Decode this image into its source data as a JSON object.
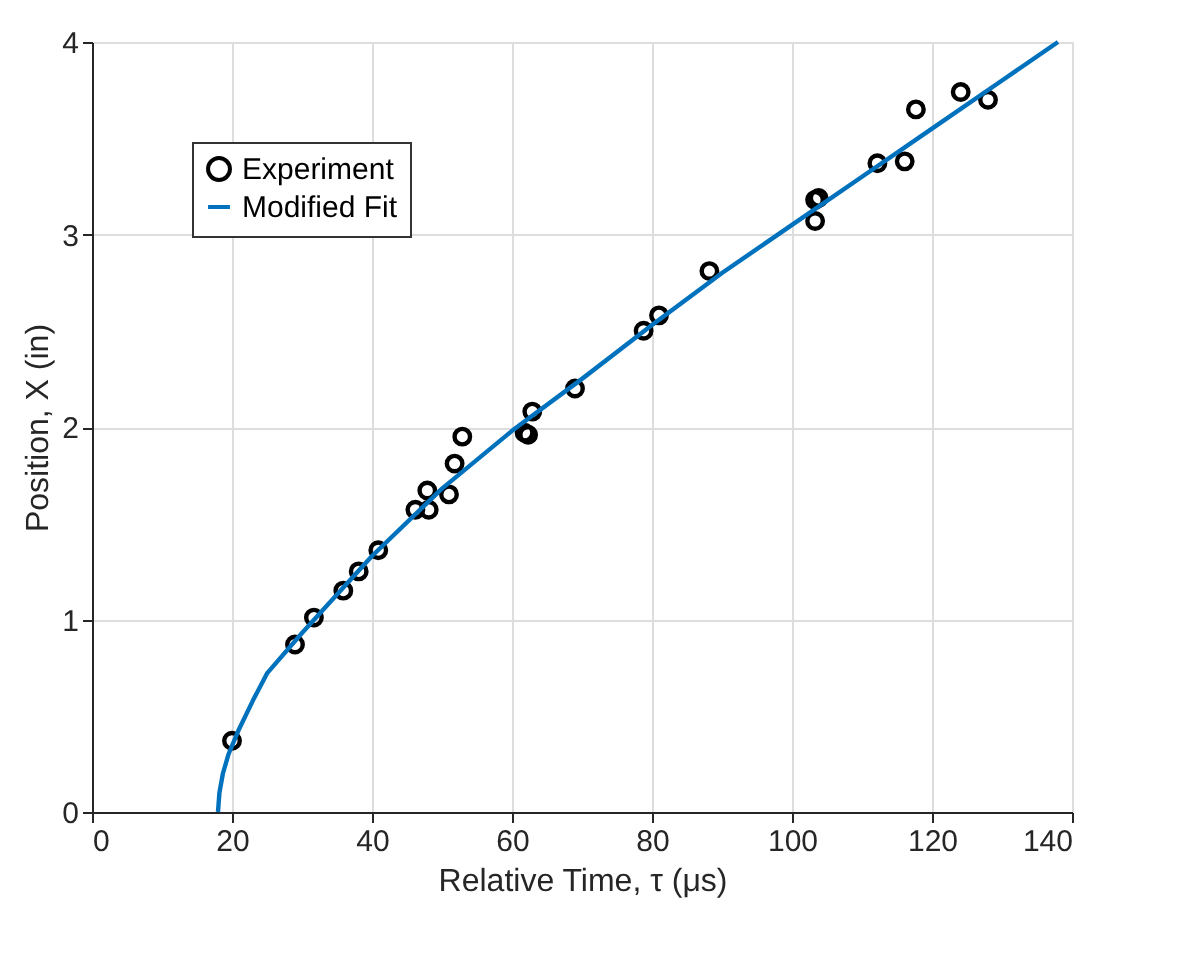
{
  "chart_data": {
    "type": "line",
    "xlabel": "Relative Time, τ (μs)",
    "ylabel": "Position, X (in)",
    "xlim": [
      0,
      140
    ],
    "xticks": [
      0,
      20,
      40,
      60,
      80,
      100,
      120,
      140
    ],
    "ylim": [
      0,
      4
    ],
    "yticks": [
      0,
      1,
      2,
      3,
      4
    ],
    "grid": true,
    "legend": "top left",
    "series": [
      {
        "name": "Experiment",
        "type": "scatter",
        "marker": "circle",
        "color": "#000000",
        "x": [
          20,
          29,
          31.7,
          35.9,
          38.1,
          40.9,
          46.2,
          47.9,
          48.1,
          51,
          51.8,
          52.9,
          61.8,
          62.3,
          62.9,
          69,
          78.8,
          81,
          88.2,
          103.3,
          103.8,
          103.3,
          112.2,
          116.1,
          117.7,
          124.1,
          128
        ],
        "values": [
          0.37,
          0.87,
          1.01,
          1.15,
          1.25,
          1.36,
          1.57,
          1.67,
          1.57,
          1.65,
          1.81,
          1.95,
          1.97,
          1.96,
          2.08,
          2.2,
          2.5,
          2.58,
          2.81,
          3.18,
          3.19,
          3.07,
          3.37,
          3.38,
          3.65,
          3.74,
          3.7
        ]
      },
      {
        "name": "Modified Fit",
        "color": "#0072bd",
        "line_style": "solid",
        "x": [
          18,
          18.2,
          18.7,
          19.5,
          21,
          23,
          25,
          30,
          40,
          50,
          60,
          70,
          80,
          90,
          100,
          110,
          120,
          130,
          138
        ],
        "values": [
          0,
          0.1,
          0.2,
          0.3,
          0.43,
          0.58,
          0.72,
          0.93,
          1.33,
          1.68,
          1.98,
          2.25,
          2.53,
          2.8,
          3.05,
          3.3,
          3.55,
          3.8,
          4
        ]
      }
    ]
  }
}
